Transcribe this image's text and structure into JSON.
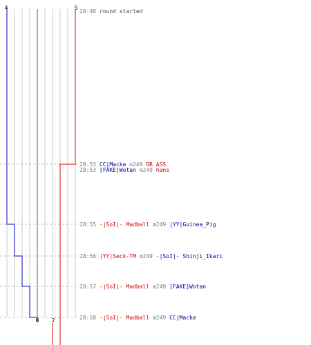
{
  "colors": {
    "blue_team": "#0000cc",
    "red_team": "#dd0000",
    "grid": "#c8c8c8",
    "center_line": "#888888",
    "time_text": "#7a7a7a"
  },
  "scores": {
    "blue_top": "4",
    "red_top": "5",
    "blue_bottom": "0",
    "red_bottom": "2"
  },
  "events": [
    {
      "time": "28:48",
      "segments": [
        {
          "text": "round started",
          "color": "plain"
        }
      ]
    },
    {
      "time": "28:53",
      "segments": [
        {
          "text": "CC|Macke",
          "color": "blue"
        },
        {
          "text": " m249 ",
          "color": "w"
        },
        {
          "text": "DR ASS",
          "color": "red"
        }
      ]
    },
    {
      "time": "28:53",
      "segments": [
        {
          "text": "[FAKE]Wotan",
          "color": "blue"
        },
        {
          "text": " m249 ",
          "color": "w"
        },
        {
          "text": "hans",
          "color": "red"
        }
      ]
    },
    {
      "time": "28:55",
      "segments": [
        {
          "text": "-|SoI|- Madball",
          "color": "red"
        },
        {
          "text": " m249 ",
          "color": "w"
        },
        {
          "text": "|YY|Guinea_Pig",
          "color": "blue"
        }
      ]
    },
    {
      "time": "28:56",
      "segments": [
        {
          "text": "|YY|Seck-TM",
          "color": "red"
        },
        {
          "text": " m249 ",
          "color": "w"
        },
        {
          "text": "-|SoI|- Shinji_Ikari",
          "color": "blue"
        }
      ]
    },
    {
      "time": "28:57",
      "segments": [
        {
          "text": "-|SoI|- Madball",
          "color": "red"
        },
        {
          "text": " m249 ",
          "color": "w"
        },
        {
          "text": "[FAKE]Wotan",
          "color": "blue"
        }
      ]
    },
    {
      "time": "28:58",
      "segments": [
        {
          "text": "-|SoI|- Madball",
          "color": "red"
        },
        {
          "text": " m249 ",
          "color": "w"
        },
        {
          "text": "CC|Macke",
          "color": "blue"
        }
      ]
    }
  ]
}
